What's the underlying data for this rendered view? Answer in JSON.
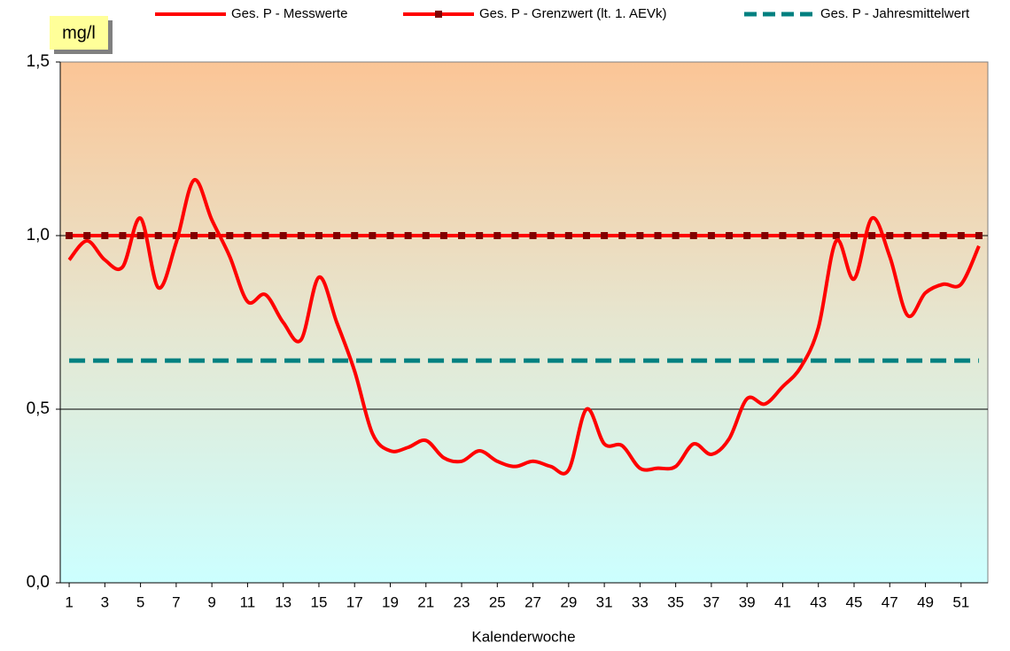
{
  "chart_data": {
    "type": "line",
    "y_label": "mg/l",
    "x_label": "Kalenderwoche",
    "x": [
      1,
      2,
      3,
      4,
      5,
      6,
      7,
      8,
      9,
      10,
      11,
      12,
      13,
      14,
      15,
      16,
      17,
      18,
      19,
      20,
      21,
      22,
      23,
      24,
      25,
      26,
      27,
      28,
      29,
      30,
      31,
      32,
      33,
      34,
      35,
      36,
      37,
      38,
      39,
      40,
      41,
      42,
      43,
      44,
      45,
      46,
      47,
      48,
      49,
      50,
      51,
      52
    ],
    "xlim": [
      0.5,
      52.5
    ],
    "xticks": [
      1,
      3,
      5,
      7,
      9,
      11,
      13,
      15,
      17,
      19,
      21,
      23,
      25,
      27,
      29,
      31,
      33,
      35,
      37,
      39,
      41,
      43,
      45,
      47,
      49,
      51
    ],
    "ylim": [
      0,
      1.5
    ],
    "yticks": [
      {
        "value": 0,
        "label": "0,0"
      },
      {
        "value": 0.5,
        "label": "0,5"
      },
      {
        "value": 1,
        "label": "1,0"
      },
      {
        "value": 1.5,
        "label": "1,5"
      }
    ],
    "grid": true,
    "legend": "top",
    "series": [
      {
        "name": "Ges. P - Messwerte",
        "color": "#ff0000",
        "style": "smooth",
        "values": [
          0.93,
          0.985,
          0.93,
          0.91,
          1.05,
          0.85,
          0.98,
          1.16,
          1.045,
          0.94,
          0.81,
          0.83,
          0.75,
          0.7,
          0.88,
          0.75,
          0.61,
          0.43,
          0.38,
          0.39,
          0.41,
          0.36,
          0.35,
          0.38,
          0.35,
          0.335,
          0.35,
          0.335,
          0.325,
          0.5,
          0.4,
          0.395,
          0.33,
          0.33,
          0.335,
          0.4,
          0.37,
          0.415,
          0.53,
          0.515,
          0.565,
          0.62,
          0.735,
          0.985,
          0.875,
          1.05,
          0.94,
          0.77,
          0.835,
          0.86,
          0.86,
          0.97
        ]
      },
      {
        "name": "Ges. P - Grenzwert (lt. 1. AEVk)",
        "color": "#ff0000",
        "marker_color": "#800000",
        "style": "markers",
        "values": [
          1,
          1,
          1,
          1,
          1,
          1,
          1,
          1,
          1,
          1,
          1,
          1,
          1,
          1,
          1,
          1,
          1,
          1,
          1,
          1,
          1,
          1,
          1,
          1,
          1,
          1,
          1,
          1,
          1,
          1,
          1,
          1,
          1,
          1,
          1,
          1,
          1,
          1,
          1,
          1,
          1,
          1,
          1,
          1,
          1,
          1,
          1,
          1,
          1,
          1,
          1,
          1
        ]
      },
      {
        "name": "Ges. P - Jahresmittelwert",
        "color": "#008080",
        "style": "dashed",
        "values": [
          0.64,
          0.64,
          0.64,
          0.64,
          0.64,
          0.64,
          0.64,
          0.64,
          0.64,
          0.64,
          0.64,
          0.64,
          0.64,
          0.64,
          0.64,
          0.64,
          0.64,
          0.64,
          0.64,
          0.64,
          0.64,
          0.64,
          0.64,
          0.64,
          0.64,
          0.64,
          0.64,
          0.64,
          0.64,
          0.64,
          0.64,
          0.64,
          0.64,
          0.64,
          0.64,
          0.64,
          0.64,
          0.64,
          0.64,
          0.64,
          0.64,
          0.64,
          0.64,
          0.64,
          0.64,
          0.64,
          0.64,
          0.64,
          0.64,
          0.64,
          0.64,
          0.64
        ]
      }
    ]
  }
}
